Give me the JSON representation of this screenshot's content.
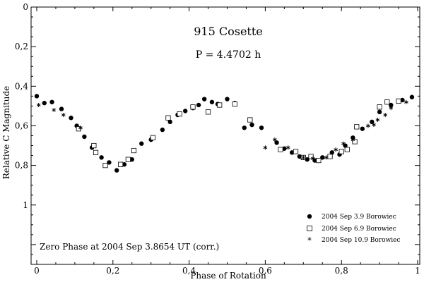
{
  "chart_data": {
    "type": "scatter",
    "title": "915 Cosette",
    "subtitle": "P =  4.4702 h",
    "xlabel": "Phase of Rotation",
    "ylabel": "Relative C Magnitude",
    "xlim": [
      0,
      1
    ],
    "ylim": [
      0,
      1.3
    ],
    "y_inverted": true,
    "x_ticks": [
      "0",
      "0,2",
      "0,4",
      "0,6",
      "0,8",
      "1"
    ],
    "x_tick_values": [
      0,
      0.2,
      0.4,
      0.6,
      0.8,
      1.0
    ],
    "y_ticks": [
      "0",
      "0,2",
      "0,4",
      "0,6",
      "0,8",
      "1"
    ],
    "y_tick_values": [
      0,
      0.2,
      0.4,
      0.6,
      0.8,
      1.0
    ],
    "annotation": "Zero Phase at 2004 Sep 3.8654 UT (corr.)",
    "legend_position": "bottom-right",
    "series": [
      {
        "name": "2004 Sep 3.9 Borowiec",
        "marker": "filled-circle",
        "points": [
          [
            0.0,
            0.45
          ],
          [
            0.02,
            0.485
          ],
          [
            0.04,
            0.48
          ],
          [
            0.065,
            0.515
          ],
          [
            0.09,
            0.56
          ],
          [
            0.105,
            0.6
          ],
          [
            0.125,
            0.655
          ],
          [
            0.145,
            0.71
          ],
          [
            0.17,
            0.76
          ],
          [
            0.19,
            0.785
          ],
          [
            0.21,
            0.825
          ],
          [
            0.23,
            0.795
          ],
          [
            0.25,
            0.77
          ],
          [
            0.275,
            0.69
          ],
          [
            0.3,
            0.67
          ],
          [
            0.33,
            0.62
          ],
          [
            0.35,
            0.58
          ],
          [
            0.37,
            0.545
          ],
          [
            0.39,
            0.525
          ],
          [
            0.41,
            0.51
          ],
          [
            0.425,
            0.495
          ],
          [
            0.44,
            0.465
          ],
          [
            0.46,
            0.48
          ],
          [
            0.475,
            0.49
          ],
          [
            0.5,
            0.465
          ],
          [
            0.52,
            0.485
          ],
          [
            0.545,
            0.61
          ],
          [
            0.565,
            0.595
          ],
          [
            0.59,
            0.61
          ],
          [
            0.63,
            0.685
          ],
          [
            0.65,
            0.715
          ],
          [
            0.67,
            0.735
          ],
          [
            0.69,
            0.755
          ],
          [
            0.71,
            0.77
          ],
          [
            0.73,
            0.775
          ],
          [
            0.75,
            0.76
          ],
          [
            0.775,
            0.735
          ],
          [
            0.795,
            0.745
          ],
          [
            0.81,
            0.7
          ],
          [
            0.83,
            0.66
          ],
          [
            0.855,
            0.615
          ],
          [
            0.88,
            0.58
          ],
          [
            0.9,
            0.53
          ],
          [
            0.93,
            0.495
          ],
          [
            0.96,
            0.47
          ],
          [
            0.985,
            0.455
          ]
        ]
      },
      {
        "name": "2004 Sep 6.9 Borowiec",
        "marker": "open-square",
        "points": [
          [
            0.11,
            0.615
          ],
          [
            0.15,
            0.7
          ],
          [
            0.155,
            0.735
          ],
          [
            0.18,
            0.8
          ],
          [
            0.22,
            0.795
          ],
          [
            0.24,
            0.77
          ],
          [
            0.255,
            0.725
          ],
          [
            0.305,
            0.66
          ],
          [
            0.345,
            0.56
          ],
          [
            0.375,
            0.54
          ],
          [
            0.41,
            0.505
          ],
          [
            0.45,
            0.53
          ],
          [
            0.48,
            0.495
          ],
          [
            0.52,
            0.49
          ],
          [
            0.56,
            0.57
          ],
          [
            0.64,
            0.72
          ],
          [
            0.68,
            0.73
          ],
          [
            0.7,
            0.76
          ],
          [
            0.72,
            0.755
          ],
          [
            0.74,
            0.775
          ],
          [
            0.77,
            0.755
          ],
          [
            0.8,
            0.73
          ],
          [
            0.815,
            0.72
          ],
          [
            0.835,
            0.68
          ],
          [
            0.84,
            0.605
          ],
          [
            0.9,
            0.505
          ],
          [
            0.92,
            0.48
          ],
          [
            0.95,
            0.475
          ]
        ]
      },
      {
        "name": "2004 Sep 10.9 Borowiec",
        "marker": "asterisk",
        "points": [
          [
            0.005,
            0.495
          ],
          [
            0.045,
            0.52
          ],
          [
            0.07,
            0.545
          ],
          [
            0.115,
            0.61
          ],
          [
            0.6,
            0.71
          ],
          [
            0.625,
            0.67
          ],
          [
            0.66,
            0.71
          ],
          [
            0.7,
            0.76
          ],
          [
            0.725,
            0.765
          ],
          [
            0.76,
            0.76
          ],
          [
            0.785,
            0.72
          ],
          [
            0.805,
            0.69
          ],
          [
            0.83,
            0.67
          ],
          [
            0.87,
            0.6
          ],
          [
            0.885,
            0.595
          ],
          [
            0.895,
            0.57
          ],
          [
            0.915,
            0.545
          ],
          [
            0.93,
            0.51
          ],
          [
            0.97,
            0.48
          ]
        ]
      }
    ]
  }
}
